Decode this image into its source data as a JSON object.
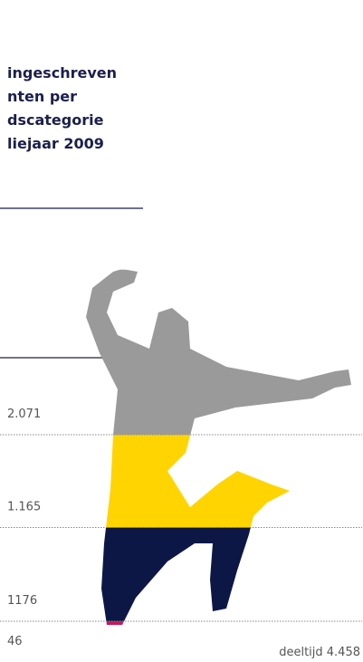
{
  "chart_data": {
    "type": "pictogram-stack",
    "title_lines": [
      "ingeschreven",
      "nten per",
      "dscategorie",
      "liejaar 2009"
    ],
    "series": [
      {
        "color": "#c8175d",
        "values": [
          46
        ],
        "value_labels": [
          "46"
        ]
      },
      {
        "color": "#0d1746",
        "values": [
          1176
        ],
        "value_labels": [
          "1176"
        ]
      },
      {
        "color": "#ffd400",
        "values": [
          1165
        ],
        "value_labels": [
          "1.165"
        ]
      },
      {
        "color": "#9a9a9a",
        "values": [
          2071
        ],
        "value_labels": [
          "2.071"
        ]
      }
    ],
    "annotation": "deeltijd 4.458"
  }
}
